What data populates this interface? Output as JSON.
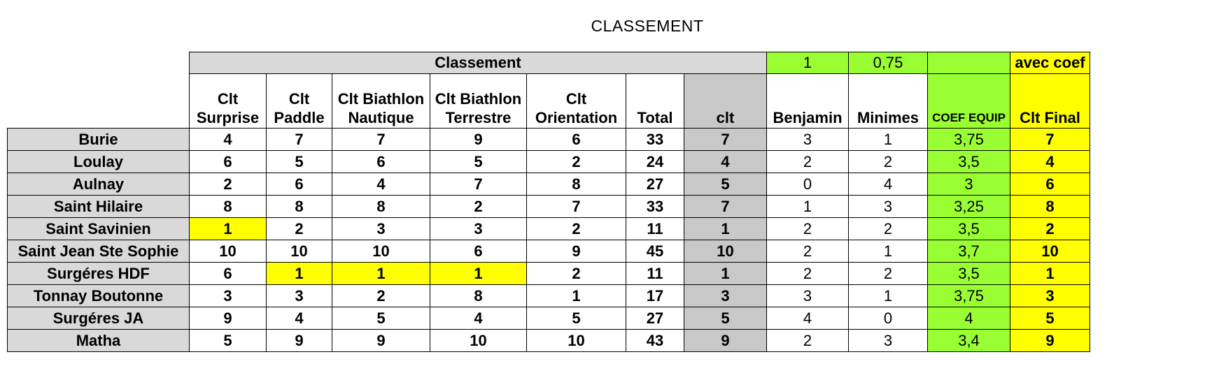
{
  "title": "CLASSEMENT",
  "header_top": {
    "group_label": "Classement",
    "benjamin_coef": "1",
    "minimes_coef": "0,75",
    "coef_equip_top": "",
    "final_top": "avec coef"
  },
  "columns": {
    "surprise": [
      "Clt",
      "Surprise"
    ],
    "paddle": [
      "Clt",
      "Paddle"
    ],
    "biathlon_nautique": [
      "Clt Biathlon",
      "Nautique"
    ],
    "biathlon_terrestre": [
      "Clt Biathlon",
      "Terrestre"
    ],
    "orientation": [
      "Clt",
      "Orientation"
    ],
    "total": "Total",
    "clt": "clt",
    "benjamin": "Benjamin",
    "minimes": "Minimes",
    "coef_equip": "COEF EQUIP",
    "clt_final": "Clt Final"
  },
  "rows": [
    {
      "team": "Burie",
      "surprise": "4",
      "paddle": "7",
      "nautique": "7",
      "terrestre": "9",
      "orientation": "6",
      "total": "33",
      "clt": "7",
      "benjamin": "3",
      "minimes": "1",
      "coef": "3,75",
      "final": "7"
    },
    {
      "team": "Loulay",
      "surprise": "6",
      "paddle": "5",
      "nautique": "6",
      "terrestre": "5",
      "orientation": "2",
      "total": "24",
      "clt": "4",
      "benjamin": "2",
      "minimes": "2",
      "coef": "3,5",
      "final": "4"
    },
    {
      "team": "Aulnay",
      "surprise": "2",
      "paddle": "6",
      "nautique": "4",
      "terrestre": "7",
      "orientation": "8",
      "total": "27",
      "clt": "5",
      "benjamin": "0",
      "minimes": "4",
      "coef": "3",
      "final": "6"
    },
    {
      "team": "Saint Hilaire",
      "surprise": "8",
      "paddle": "8",
      "nautique": "8",
      "terrestre": "2",
      "orientation": "7",
      "total": "33",
      "clt": "7",
      "benjamin": "1",
      "minimes": "3",
      "coef": "3,25",
      "final": "8"
    },
    {
      "team": "Saint Savinien",
      "surprise": "1",
      "paddle": "2",
      "nautique": "3",
      "terrestre": "3",
      "orientation": "2",
      "total": "11",
      "clt": "1",
      "benjamin": "2",
      "minimes": "2",
      "coef": "3,5",
      "final": "2"
    },
    {
      "team": "Saint Jean Ste Sophie",
      "surprise": "10",
      "paddle": "10",
      "nautique": "10",
      "terrestre": "6",
      "orientation": "9",
      "total": "45",
      "clt": "10",
      "benjamin": "2",
      "minimes": "1",
      "coef": "3,7",
      "final": "10"
    },
    {
      "team": "Surgéres HDF",
      "surprise": "6",
      "paddle": "1",
      "nautique": "1",
      "terrestre": "1",
      "orientation": "2",
      "total": "11",
      "clt": "1",
      "benjamin": "2",
      "minimes": "2",
      "coef": "3,5",
      "final": "1"
    },
    {
      "team": "Tonnay Boutonne",
      "surprise": "3",
      "paddle": "3",
      "nautique": "2",
      "terrestre": "8",
      "orientation": "1",
      "total": "17",
      "clt": "3",
      "benjamin": "3",
      "minimes": "1",
      "coef": "3,75",
      "final": "3"
    },
    {
      "team": "Surgéres JA",
      "surprise": "9",
      "paddle": "4",
      "nautique": "5",
      "terrestre": "4",
      "orientation": "5",
      "total": "27",
      "clt": "5",
      "benjamin": "4",
      "minimes": "0",
      "coef": "4",
      "final": "5"
    },
    {
      "team": "Matha",
      "surprise": "5",
      "paddle": "9",
      "nautique": "9",
      "terrestre": "10",
      "orientation": "10",
      "total": "43",
      "clt": "9",
      "benjamin": "2",
      "minimes": "3",
      "coef": "3,4",
      "final": "9"
    }
  ],
  "highlights": {
    "highlight_color": "#ffff00",
    "coef_color": "#99ff33",
    "header_gray": "#d9d9d9",
    "clt_gray": "#c8c8c8",
    "cells": [
      {
        "row": 4,
        "col": "surprise"
      },
      {
        "row": 6,
        "col": "paddle"
      },
      {
        "row": 6,
        "col": "nautique"
      },
      {
        "row": 6,
        "col": "terrestre"
      }
    ]
  }
}
